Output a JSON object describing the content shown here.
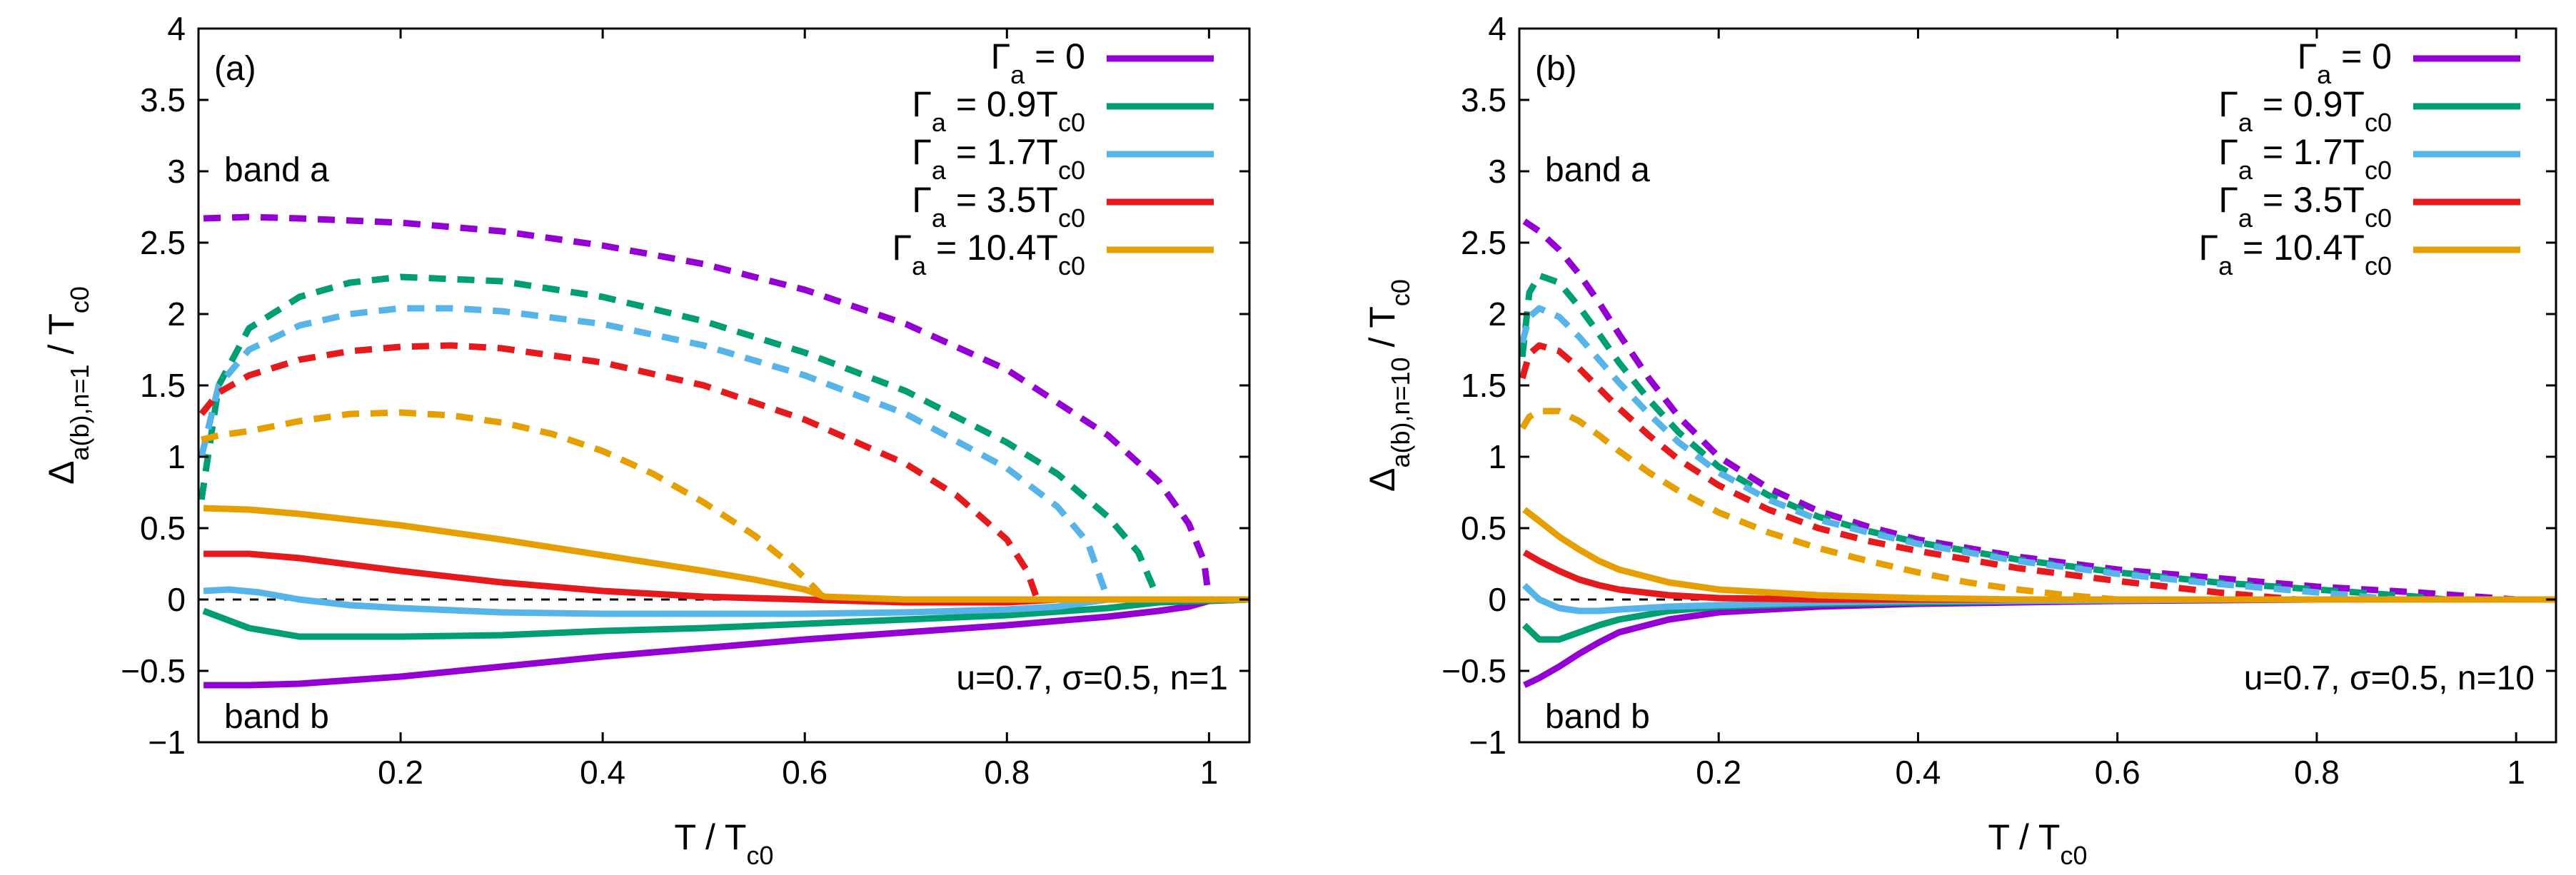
{
  "chart_data": [
    {
      "type": "line",
      "panel_label": "(a)",
      "xlabel_main": "T / T",
      "xlabel_sub": "c0",
      "ylabel_main": "Δ",
      "ylabel_sub": "a(b),n=1",
      "ylabel_suffix": " / T",
      "ylabel_suffix_sub": "c0",
      "xlim": [
        0,
        1.04
      ],
      "ylim": [
        -1,
        4
      ],
      "xticks": [
        0.2,
        0.4,
        0.6,
        0.8,
        1
      ],
      "xtick_labels": [
        "0.2",
        "0.4",
        "0.6",
        "0.8",
        "1"
      ],
      "yticks": [
        -1,
        -0.5,
        0,
        0.5,
        1,
        1.5,
        2,
        2.5,
        3,
        3.5,
        4
      ],
      "ytick_labels": [
        "−1",
        "−0.5",
        "0",
        "0.5",
        "1",
        "1.5",
        "2",
        "2.5",
        "3",
        "3.5",
        "4"
      ],
      "annotations": {
        "band_a": "band a",
        "band_b": "band b",
        "params": "u=0.7, σ=0.5, n=1"
      },
      "legend_position": "top-right",
      "series": [
        {
          "name": "Γa = 0",
          "legend_main": "Γ",
          "legend_sub": "a",
          "legend_rest": " = 0",
          "legend_rest_sub": "",
          "color": "#9400d3",
          "band_a": {
            "x": [
              0.005,
              0.05,
              0.1,
              0.2,
              0.3,
              0.4,
              0.5,
              0.6,
              0.7,
              0.8,
              0.9,
              0.95,
              0.98,
              0.995,
              1.0
            ],
            "y": [
              2.67,
              2.68,
              2.67,
              2.64,
              2.58,
              2.48,
              2.35,
              2.17,
              1.93,
              1.61,
              1.15,
              0.83,
              0.53,
              0.27,
              0.0
            ]
          },
          "band_b": {
            "x": [
              0.005,
              0.05,
              0.1,
              0.2,
              0.3,
              0.4,
              0.5,
              0.6,
              0.7,
              0.8,
              0.9,
              0.95,
              0.98,
              1.0,
              1.04
            ],
            "y": [
              -0.6,
              -0.6,
              -0.59,
              -0.54,
              -0.47,
              -0.4,
              -0.34,
              -0.28,
              -0.23,
              -0.18,
              -0.12,
              -0.08,
              -0.05,
              -0.01,
              0.0
            ]
          }
        },
        {
          "name": "Γa = 0.9Tc0",
          "legend_main": "Γ",
          "legend_sub": "a",
          "legend_rest": " = 0.9T",
          "legend_rest_sub": "c0",
          "color": "#009e73",
          "band_a": {
            "x": [
              0.003,
              0.02,
              0.05,
              0.1,
              0.15,
              0.2,
              0.3,
              0.4,
              0.5,
              0.6,
              0.7,
              0.8,
              0.85,
              0.9,
              0.93,
              0.95
            ],
            "y": [
              0.7,
              1.5,
              1.9,
              2.12,
              2.22,
              2.26,
              2.23,
              2.12,
              1.95,
              1.73,
              1.46,
              1.1,
              0.88,
              0.58,
              0.33,
              0.0
            ]
          },
          "band_b": {
            "x": [
              0.005,
              0.05,
              0.1,
              0.2,
              0.3,
              0.4,
              0.5,
              0.6,
              0.7,
              0.8,
              0.9,
              0.95,
              1.04
            ],
            "y": [
              -0.08,
              -0.2,
              -0.26,
              -0.26,
              -0.25,
              -0.22,
              -0.2,
              -0.17,
              -0.14,
              -0.11,
              -0.06,
              -0.02,
              0.0
            ]
          }
        },
        {
          "name": "Γa = 1.7Tc0",
          "legend_main": "Γ",
          "legend_sub": "a",
          "legend_rest": " = 1.7T",
          "legend_rest_sub": "c0",
          "color": "#56b4e9",
          "band_a": {
            "x": [
              0.003,
              0.02,
              0.05,
              0.1,
              0.15,
              0.2,
              0.25,
              0.3,
              0.4,
              0.5,
              0.6,
              0.7,
              0.8,
              0.85,
              0.88,
              0.9
            ],
            "y": [
              1.0,
              1.5,
              1.75,
              1.92,
              2.0,
              2.04,
              2.04,
              2.02,
              1.93,
              1.78,
              1.57,
              1.3,
              0.92,
              0.65,
              0.4,
              0.0
            ]
          },
          "band_b": {
            "x": [
              0.005,
              0.03,
              0.06,
              0.1,
              0.15,
              0.2,
              0.3,
              0.4,
              0.5,
              0.6,
              0.7,
              0.8,
              0.85,
              0.9,
              1.04
            ],
            "y": [
              0.06,
              0.07,
              0.05,
              0.0,
              -0.04,
              -0.06,
              -0.09,
              -0.1,
              -0.1,
              -0.1,
              -0.09,
              -0.07,
              -0.05,
              0.0,
              0.0
            ]
          }
        },
        {
          "name": "Γa = 3.5Tc0",
          "legend_main": "Γ",
          "legend_sub": "a",
          "legend_rest": " = 3.5T",
          "legend_rest_sub": "c0",
          "color": "#e41a1c",
          "band_a": {
            "x": [
              0.003,
              0.02,
              0.05,
              0.1,
              0.15,
              0.2,
              0.25,
              0.3,
              0.4,
              0.5,
              0.6,
              0.7,
              0.75,
              0.8,
              0.82,
              0.83
            ],
            "y": [
              1.3,
              1.45,
              1.57,
              1.68,
              1.74,
              1.77,
              1.78,
              1.76,
              1.66,
              1.5,
              1.26,
              0.95,
              0.73,
              0.42,
              0.2,
              0.0
            ]
          },
          "band_b": {
            "x": [
              0.005,
              0.05,
              0.1,
              0.2,
              0.3,
              0.4,
              0.5,
              0.6,
              0.65,
              0.7,
              0.8,
              0.85,
              1.04
            ],
            "y": [
              0.32,
              0.32,
              0.29,
              0.2,
              0.12,
              0.06,
              0.02,
              0.0,
              -0.01,
              -0.02,
              -0.02,
              0.0,
              0.0
            ]
          }
        },
        {
          "name": "Γa = 10.4Tc0",
          "legend_main": "Γ",
          "legend_sub": "a",
          "legend_rest": " = 10.4T",
          "legend_rest_sub": "c0",
          "color": "#e69f00",
          "band_a": {
            "x": [
              0.003,
              0.02,
              0.05,
              0.1,
              0.15,
              0.2,
              0.25,
              0.3,
              0.35,
              0.4,
              0.45,
              0.5,
              0.55,
              0.58,
              0.6,
              0.61,
              0.62
            ],
            "y": [
              1.12,
              1.15,
              1.18,
              1.25,
              1.3,
              1.31,
              1.29,
              1.24,
              1.16,
              1.04,
              0.88,
              0.68,
              0.45,
              0.28,
              0.15,
              0.08,
              0.0
            ]
          },
          "band_b": {
            "x": [
              0.005,
              0.05,
              0.1,
              0.2,
              0.3,
              0.4,
              0.5,
              0.55,
              0.6,
              0.62,
              0.7,
              1.04
            ],
            "y": [
              0.64,
              0.63,
              0.6,
              0.52,
              0.42,
              0.31,
              0.2,
              0.14,
              0.07,
              0.02,
              0.0,
              0.0
            ]
          }
        }
      ]
    },
    {
      "type": "line",
      "panel_label": "(b)",
      "xlabel_main": "T / T",
      "xlabel_sub": "c0",
      "ylabel_main": "Δ",
      "ylabel_sub": "a(b),n=10",
      "ylabel_suffix": " / T",
      "ylabel_suffix_sub": "c0",
      "xlim": [
        0,
        1.04
      ],
      "ylim": [
        -1,
        4
      ],
      "xticks": [
        0.2,
        0.4,
        0.6,
        0.8,
        1
      ],
      "xtick_labels": [
        "0.2",
        "0.4",
        "0.6",
        "0.8",
        "1"
      ],
      "yticks": [
        -1,
        -0.5,
        0,
        0.5,
        1,
        1.5,
        2,
        2.5,
        3,
        3.5,
        4
      ],
      "ytick_labels": [
        "−1",
        "−0.5",
        "0",
        "0.5",
        "1",
        "1.5",
        "2",
        "2.5",
        "3",
        "3.5",
        "4"
      ],
      "annotations": {
        "band_a": "band a",
        "band_b": "band b",
        "params": "u=0.7, σ=0.5, n=10"
      },
      "legend_position": "top-right",
      "series": [
        {
          "name": "Γa = 0",
          "legend_main": "Γ",
          "legend_sub": "a",
          "legend_rest": " = 0",
          "legend_rest_sub": "",
          "color": "#9400d3",
          "band_a": {
            "x": [
              0.005,
              0.02,
              0.04,
              0.06,
              0.08,
              0.1,
              0.13,
              0.16,
              0.2,
              0.25,
              0.3,
              0.35,
              0.4,
              0.5,
              0.6,
              0.7,
              0.8,
              0.9,
              1.0
            ],
            "y": [
              2.65,
              2.58,
              2.45,
              2.28,
              2.08,
              1.86,
              1.55,
              1.28,
              1.0,
              0.78,
              0.62,
              0.51,
              0.42,
              0.3,
              0.21,
              0.15,
              0.09,
              0.05,
              0.0
            ]
          },
          "band_b": {
            "x": [
              0.005,
              0.02,
              0.04,
              0.06,
              0.08,
              0.1,
              0.15,
              0.2,
              0.3,
              0.4,
              0.5,
              0.6,
              0.8,
              1.04
            ],
            "y": [
              -0.6,
              -0.55,
              -0.47,
              -0.38,
              -0.3,
              -0.23,
              -0.14,
              -0.09,
              -0.05,
              -0.03,
              -0.02,
              -0.01,
              0.0,
              0.0
            ]
          }
        },
        {
          "name": "Γa = 0.9Tc0",
          "legend_main": "Γ",
          "legend_sub": "a",
          "legend_rest": " = 0.9T",
          "legend_rest_sub": "c0",
          "color": "#009e73",
          "band_a": {
            "x": [
              0.003,
              0.01,
              0.02,
              0.04,
              0.06,
              0.08,
              0.1,
              0.13,
              0.16,
              0.2,
              0.25,
              0.3,
              0.35,
              0.4,
              0.5,
              0.6,
              0.7,
              0.8,
              0.9,
              0.93
            ],
            "y": [
              1.7,
              2.15,
              2.27,
              2.22,
              2.05,
              1.86,
              1.66,
              1.4,
              1.17,
              0.93,
              0.73,
              0.58,
              0.48,
              0.4,
              0.28,
              0.19,
              0.12,
              0.07,
              0.02,
              0.0
            ]
          },
          "band_b": {
            "x": [
              0.005,
              0.02,
              0.04,
              0.06,
              0.08,
              0.1,
              0.15,
              0.2,
              0.3,
              0.4,
              0.5,
              0.7,
              1.04
            ],
            "y": [
              -0.18,
              -0.28,
              -0.28,
              -0.23,
              -0.18,
              -0.14,
              -0.08,
              -0.05,
              -0.03,
              -0.02,
              -0.01,
              0.0,
              0.0
            ]
          }
        },
        {
          "name": "Γa = 1.7Tc0",
          "legend_main": "Γ",
          "legend_sub": "a",
          "legend_rest": " = 1.7T",
          "legend_rest_sub": "c0",
          "color": "#56b4e9",
          "band_a": {
            "x": [
              0.003,
              0.01,
              0.02,
              0.04,
              0.06,
              0.08,
              0.1,
              0.13,
              0.16,
              0.2,
              0.25,
              0.3,
              0.35,
              0.4,
              0.5,
              0.6,
              0.7,
              0.8,
              0.88
            ],
            "y": [
              1.8,
              1.98,
              2.04,
              1.98,
              1.84,
              1.68,
              1.52,
              1.3,
              1.1,
              0.89,
              0.7,
              0.56,
              0.47,
              0.39,
              0.27,
              0.18,
              0.11,
              0.05,
              0.0
            ]
          },
          "band_b": {
            "x": [
              0.005,
              0.02,
              0.04,
              0.06,
              0.08,
              0.1,
              0.15,
              0.2,
              0.3,
              0.4,
              0.5,
              0.7,
              1.04
            ],
            "y": [
              0.1,
              0.0,
              -0.06,
              -0.08,
              -0.08,
              -0.07,
              -0.05,
              -0.04,
              -0.02,
              -0.01,
              -0.01,
              0.0,
              0.0
            ]
          }
        },
        {
          "name": "Γa = 3.5Tc0",
          "legend_main": "Γ",
          "legend_sub": "a",
          "legend_rest": " = 3.5T",
          "legend_rest_sub": "c0",
          "color": "#e41a1c",
          "band_a": {
            "x": [
              0.003,
              0.01,
              0.02,
              0.04,
              0.06,
              0.08,
              0.1,
              0.13,
              0.16,
              0.2,
              0.25,
              0.3,
              0.35,
              0.4,
              0.5,
              0.6,
              0.7,
              0.78
            ],
            "y": [
              1.55,
              1.72,
              1.78,
              1.74,
              1.62,
              1.48,
              1.34,
              1.15,
              0.98,
              0.8,
              0.63,
              0.5,
              0.41,
              0.34,
              0.22,
              0.13,
              0.05,
              0.0
            ]
          },
          "band_b": {
            "x": [
              0.005,
              0.02,
              0.04,
              0.06,
              0.08,
              0.1,
              0.15,
              0.2,
              0.3,
              0.4,
              0.5,
              1.04
            ],
            "y": [
              0.33,
              0.27,
              0.2,
              0.14,
              0.1,
              0.07,
              0.03,
              0.01,
              0.0,
              0.0,
              0.0,
              0.0
            ]
          }
        },
        {
          "name": "Γa = 10.4Tc0",
          "legend_main": "Γ",
          "legend_sub": "a",
          "legend_rest": " = 10.4T",
          "legend_rest_sub": "c0",
          "color": "#e69f00",
          "band_a": {
            "x": [
              0.003,
              0.01,
              0.02,
              0.04,
              0.06,
              0.08,
              0.1,
              0.13,
              0.16,
              0.2,
              0.25,
              0.3,
              0.35,
              0.4,
              0.45,
              0.5,
              0.55,
              0.6
            ],
            "y": [
              1.2,
              1.28,
              1.32,
              1.32,
              1.25,
              1.15,
              1.04,
              0.89,
              0.76,
              0.61,
              0.47,
              0.36,
              0.27,
              0.19,
              0.12,
              0.07,
              0.03,
              0.0
            ]
          },
          "band_b": {
            "x": [
              0.005,
              0.02,
              0.04,
              0.06,
              0.08,
              0.1,
              0.15,
              0.2,
              0.3,
              0.4,
              0.5,
              0.6,
              1.04
            ],
            "y": [
              0.63,
              0.55,
              0.44,
              0.35,
              0.27,
              0.21,
              0.12,
              0.07,
              0.03,
              0.01,
              0.0,
              0.0,
              0.0
            ]
          }
        }
      ]
    }
  ]
}
